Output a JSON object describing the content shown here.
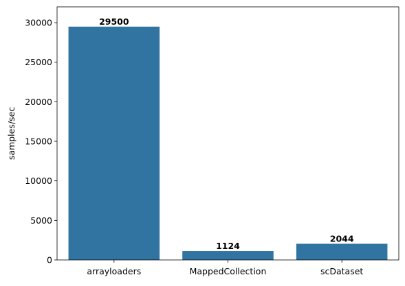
{
  "chart_data": {
    "type": "bar",
    "title": "",
    "xlabel": "",
    "ylabel": "samples/sec",
    "categories": [
      "arrayloaders",
      "MappedCollection",
      "scDataset"
    ],
    "values": [
      29500,
      1124,
      2044
    ],
    "value_labels": [
      "29500",
      "1124",
      "2044"
    ],
    "ylim": [
      0,
      32000
    ],
    "yticks": [
      0,
      5000,
      10000,
      15000,
      20000,
      25000,
      30000
    ],
    "ytick_labels": [
      "0",
      "5000",
      "10000",
      "15000",
      "20000",
      "25000",
      "30000"
    ],
    "grid": false,
    "legend": "none",
    "bar_color": "#3274a1"
  }
}
